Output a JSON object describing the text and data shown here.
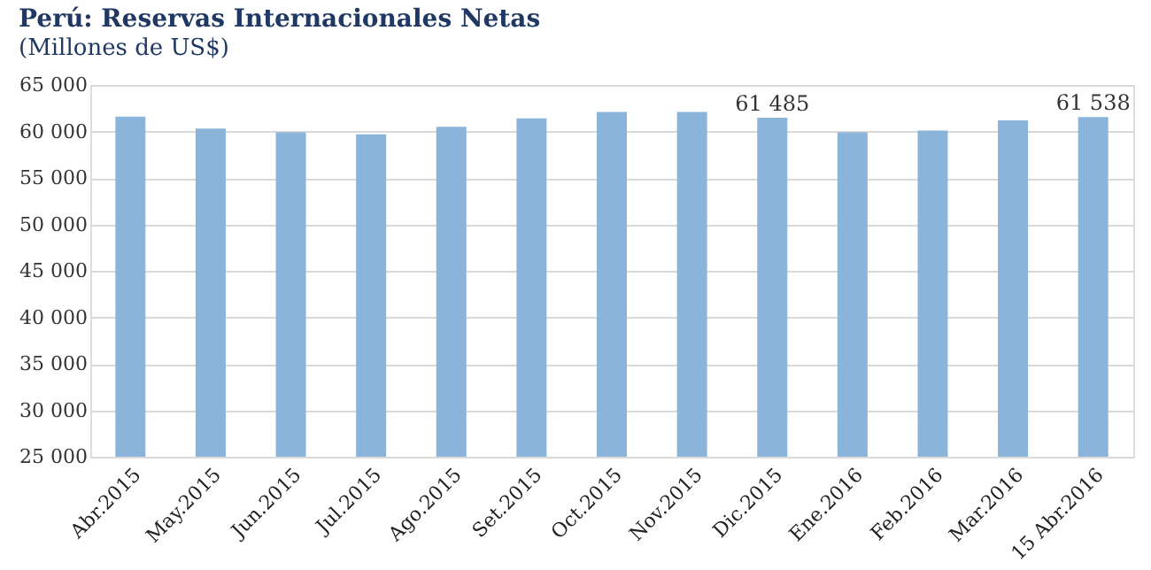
{
  "chart_data": {
    "type": "bar",
    "title": "Perú: Reservas Internacionales Netas",
    "subtitle": "(Millones de US$)",
    "categories": [
      "Abr.2015",
      "May.2015",
      "Jun.2015",
      "Jul.2015",
      "Ago.2015",
      "Set.2015",
      "Oct.2015",
      "Nov.2015",
      "Dic.2015",
      "Ene.2016",
      "Feb.2016",
      "Mar.2016",
      "15 Abr.2016"
    ],
    "values": [
      61600,
      60300,
      59900,
      59700,
      60500,
      61400,
      62100,
      62100,
      61485,
      59900,
      60100,
      61200,
      61538
    ],
    "value_labels": [
      null,
      null,
      null,
      null,
      null,
      null,
      null,
      null,
      "61 485",
      null,
      null,
      null,
      "61 538"
    ],
    "color": "#8ab4da",
    "ylim": [
      25000,
      65000
    ],
    "yticks": [
      {
        "value": 25000,
        "label": "25 000"
      },
      {
        "value": 30000,
        "label": "30 000"
      },
      {
        "value": 35000,
        "label": "35 000"
      },
      {
        "value": 40000,
        "label": "40 000"
      },
      {
        "value": 45000,
        "label": "45 000"
      },
      {
        "value": 50000,
        "label": "50 000"
      },
      {
        "value": 55000,
        "label": "55 000"
      },
      {
        "value": 60000,
        "label": "60 000"
      },
      {
        "value": 65000,
        "label": "65 000"
      }
    ],
    "grid": "y"
  }
}
